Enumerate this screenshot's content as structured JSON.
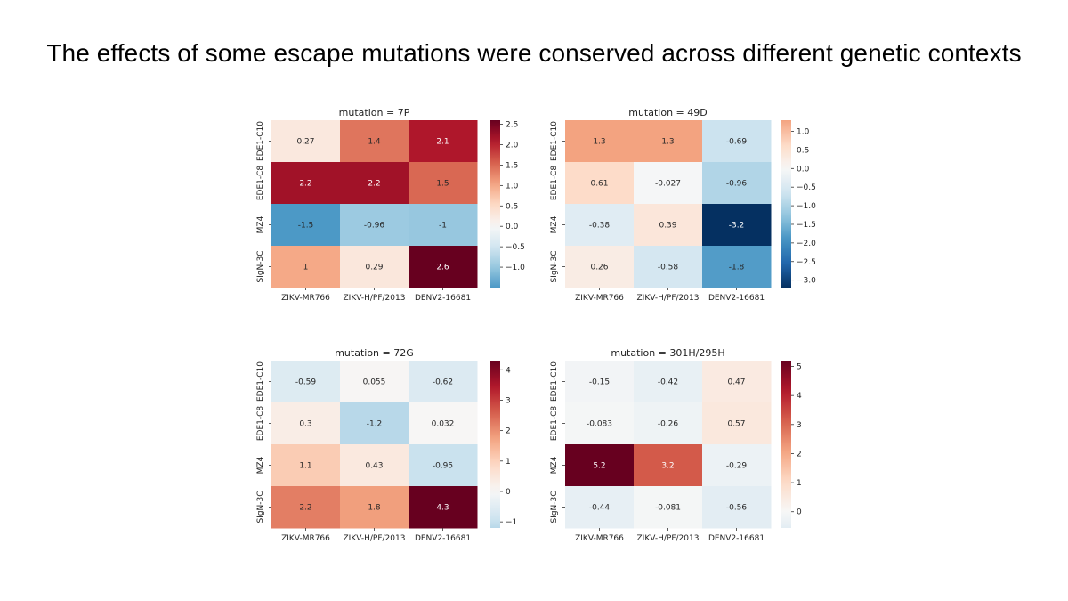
{
  "slide": {
    "title": "The effects of some escape mutations were conserved across different genetic contexts"
  },
  "chart_data": [
    {
      "type": "heatmap",
      "title": "mutation = 7P",
      "rows": [
        "EDE1-C10",
        "EDE1-C8",
        "MZ4",
        "SIgN-3C"
      ],
      "columns": [
        "ZIKV-MR766",
        "ZIKV-H/PF/2013",
        "DENV2-16681"
      ],
      "values": [
        [
          0.27,
          1.4,
          2.1
        ],
        [
          2.2,
          2.2,
          1.5
        ],
        [
          -1.5,
          -0.96,
          -1
        ],
        [
          1,
          0.29,
          2.6
        ]
      ],
      "labels": [
        [
          "0.27",
          "1.4",
          "2.1"
        ],
        [
          "2.2",
          "2.2",
          "1.5"
        ],
        [
          "-1.5",
          "-0.96",
          "-1"
        ],
        [
          "1",
          "0.29",
          "2.6"
        ]
      ],
      "colorbar": {
        "range": [
          -1.5,
          2.6
        ],
        "center": 0,
        "ticks": [
          2.5,
          2.0,
          1.5,
          1.0,
          0.5,
          0.0,
          -0.5,
          -1.0
        ],
        "tick_labels": [
          "2.5",
          "2.0",
          "1.5",
          "1.0",
          "0.5",
          "0.0",
          "−0.5",
          "−1.0"
        ]
      }
    },
    {
      "type": "heatmap",
      "title": "mutation = 49D",
      "rows": [
        "EDE1-C10",
        "EDE1-C8",
        "MZ4",
        "SIgN-3C"
      ],
      "columns": [
        "ZIKV-MR766",
        "ZIKV-H/PF/2013",
        "DENV2-16681"
      ],
      "values": [
        [
          1.3,
          1.3,
          -0.69
        ],
        [
          0.61,
          -0.027,
          -0.96
        ],
        [
          -0.38,
          0.39,
          -3.2
        ],
        [
          0.26,
          -0.58,
          -1.8
        ]
      ],
      "labels": [
        [
          "1.3",
          "1.3",
          "-0.69"
        ],
        [
          "0.61",
          "-0.027",
          "-0.96"
        ],
        [
          "-0.38",
          "0.39",
          "-3.2"
        ],
        [
          "0.26",
          "-0.58",
          "-1.8"
        ]
      ],
      "colorbar": {
        "range": [
          -3.2,
          1.3
        ],
        "center": 0,
        "ticks": [
          1.0,
          0.5,
          0.0,
          -0.5,
          -1.0,
          -1.5,
          -2.0,
          -2.5,
          -3.0
        ],
        "tick_labels": [
          "1.0",
          "0.5",
          "0.0",
          "−0.5",
          "−1.0",
          "−1.5",
          "−2.0",
          "−2.5",
          "−3.0"
        ]
      }
    },
    {
      "type": "heatmap",
      "title": "mutation = 72G",
      "rows": [
        "EDE1-C10",
        "EDE1-C8",
        "MZ4",
        "SIgN-3C"
      ],
      "columns": [
        "ZIKV-MR766",
        "ZIKV-H/PF/2013",
        "DENV2-16681"
      ],
      "values": [
        [
          -0.59,
          0.055,
          -0.62
        ],
        [
          0.3,
          -1.2,
          0.032
        ],
        [
          1.1,
          0.43,
          -0.95
        ],
        [
          2.2,
          1.8,
          4.3
        ]
      ],
      "labels": [
        [
          "-0.59",
          "0.055",
          "-0.62"
        ],
        [
          "0.3",
          "-1.2",
          "0.032"
        ],
        [
          "1.1",
          "0.43",
          "-0.95"
        ],
        [
          "2.2",
          "1.8",
          "4.3"
        ]
      ],
      "colorbar": {
        "range": [
          -1.2,
          4.3
        ],
        "center": 0,
        "ticks": [
          4,
          3,
          2,
          1,
          0,
          -1
        ],
        "tick_labels": [
          "4",
          "3",
          "2",
          "1",
          "0",
          "−1"
        ]
      }
    },
    {
      "type": "heatmap",
      "title": "mutation = 301H/295H",
      "rows": [
        "EDE1-C10",
        "EDE1-C8",
        "MZ4",
        "SIgN-3C"
      ],
      "columns": [
        "ZIKV-MR766",
        "ZIKV-H/PF/2013",
        "DENV2-16681"
      ],
      "values": [
        [
          -0.15,
          -0.42,
          0.47
        ],
        [
          -0.083,
          -0.26,
          0.57
        ],
        [
          5.2,
          3.2,
          -0.29
        ],
        [
          -0.44,
          -0.081,
          -0.56
        ]
      ],
      "labels": [
        [
          "-0.15",
          "-0.42",
          "0.47"
        ],
        [
          "-0.083",
          "-0.26",
          "0.57"
        ],
        [
          "5.2",
          "3.2",
          "-0.29"
        ],
        [
          "-0.44",
          "-0.081",
          "-0.56"
        ]
      ],
      "colorbar": {
        "range": [
          -0.56,
          5.2
        ],
        "center": 0,
        "ticks": [
          5,
          4,
          3,
          2,
          1,
          0
        ],
        "tick_labels": [
          "5",
          "4",
          "3",
          "2",
          "1",
          "0"
        ]
      }
    }
  ]
}
